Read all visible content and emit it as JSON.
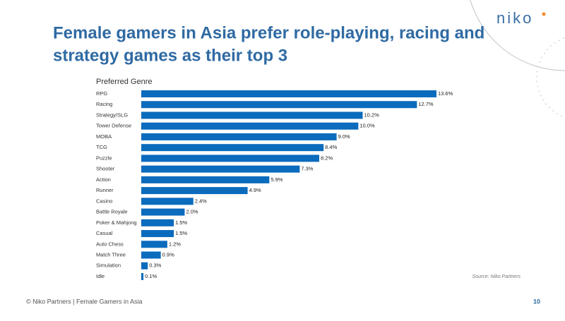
{
  "slide": {
    "title_lines": [
      "Female gamers in Asia prefer role-playing, racing and",
      "strategy games as their top 3"
    ],
    "logo": "niko",
    "source": "Source: Niko Partners",
    "footer": "© Niko Partners | Female Gamers in Asia",
    "page_number": "10"
  },
  "chart_data": {
    "type": "bar",
    "orientation": "horizontal",
    "title": "Preferred Genre",
    "color": "#0b6bbd",
    "categories": [
      "RPG",
      "Racing",
      "Strategy/SLG",
      "Tower Defense",
      "MOBA",
      "TCG",
      "Puzzle",
      "Shooter",
      "Action",
      "Runner",
      "Casino",
      "Battle Royale",
      "Poker & Mahjong",
      "Casual",
      "Auto Chess",
      "Match Three",
      "Simulation",
      "Idle"
    ],
    "values": [
      13.6,
      12.7,
      10.2,
      10.0,
      9.0,
      8.4,
      8.2,
      7.3,
      5.9,
      4.9,
      2.4,
      2.0,
      1.5,
      1.5,
      1.2,
      0.9,
      0.3,
      0.1
    ],
    "value_labels": [
      "13.6%",
      "12.7%",
      "10.2%",
      "10.0%",
      "9.0%",
      "8.4%",
      "8.2%",
      "7.3%",
      "5.9%",
      "4.9%",
      "2.4%",
      "2.0%",
      "1.5%",
      "1.5%",
      "1.2%",
      "0.9%",
      "0.3%",
      "0.1%"
    ]
  }
}
